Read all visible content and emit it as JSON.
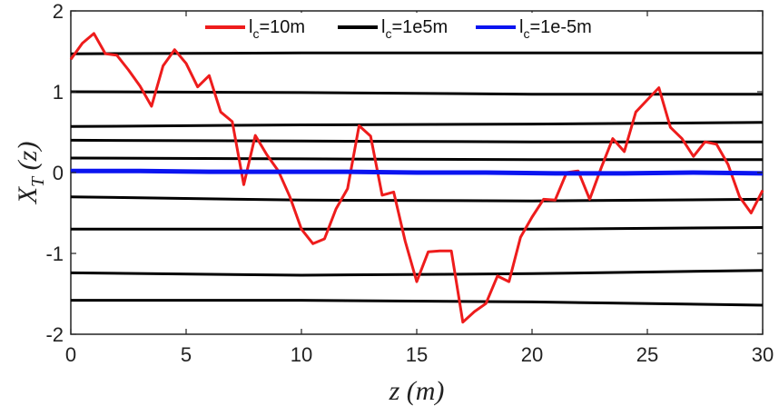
{
  "chart_data": {
    "type": "line",
    "title": "",
    "xlabel": "z (m)",
    "ylabel": "X_T (z)",
    "xlim": [
      0,
      30
    ],
    "ylim": [
      -2,
      2
    ],
    "xticks": [
      "0",
      "5",
      "10",
      "15",
      "20",
      "25",
      "30"
    ],
    "yticks": [
      "2",
      "1",
      "0",
      "-1",
      "-2"
    ],
    "legend_position": "top",
    "colors": {
      "red": "#ee1c1c",
      "black": "#000000",
      "blue": "#0a14f0"
    },
    "series": [
      {
        "name": "lc=10m",
        "legend_main": "l",
        "legend_sub": "c",
        "legend_rest": "=10m",
        "color": "#ee1c1c",
        "points": [
          [
            0,
            1.4
          ],
          [
            0.5,
            1.6
          ],
          [
            1,
            1.72
          ],
          [
            1.5,
            1.47
          ],
          [
            2,
            1.45
          ],
          [
            2.5,
            1.27
          ],
          [
            3,
            1.07
          ],
          [
            3.5,
            0.82
          ],
          [
            4,
            1.32
          ],
          [
            4.5,
            1.52
          ],
          [
            5,
            1.35
          ],
          [
            5.5,
            1.06
          ],
          [
            6,
            1.2
          ],
          [
            6.5,
            0.75
          ],
          [
            7,
            0.63
          ],
          [
            7.5,
            -0.15
          ],
          [
            8,
            0.46
          ],
          [
            8.5,
            0.22
          ],
          [
            9,
            0.02
          ],
          [
            9.5,
            -0.3
          ],
          [
            10,
            -0.7
          ],
          [
            10.5,
            -0.88
          ],
          [
            11,
            -0.82
          ],
          [
            11.5,
            -0.45
          ],
          [
            12,
            -0.2
          ],
          [
            12.5,
            0.58
          ],
          [
            13,
            0.45
          ],
          [
            13.5,
            -0.28
          ],
          [
            14,
            -0.24
          ],
          [
            14.5,
            -0.85
          ],
          [
            15,
            -1.35
          ],
          [
            15.5,
            -0.98
          ],
          [
            16,
            -0.97
          ],
          [
            16.5,
            -0.97
          ],
          [
            17,
            -1.85
          ],
          [
            17.5,
            -1.72
          ],
          [
            18,
            -1.62
          ],
          [
            18.5,
            -1.28
          ],
          [
            19,
            -1.35
          ],
          [
            19.5,
            -0.8
          ],
          [
            20,
            -0.55
          ],
          [
            20.5,
            -0.33
          ],
          [
            21,
            -0.34
          ],
          [
            21.5,
            0.0
          ],
          [
            22,
            0.02
          ],
          [
            22.5,
            -0.33
          ],
          [
            23,
            0.06
          ],
          [
            23.5,
            0.42
          ],
          [
            24,
            0.26
          ],
          [
            24.5,
            0.75
          ],
          [
            25,
            0.9
          ],
          [
            25.5,
            1.05
          ],
          [
            26,
            0.56
          ],
          [
            26.5,
            0.42
          ],
          [
            27,
            0.2
          ],
          [
            27.5,
            0.38
          ],
          [
            28,
            0.35
          ],
          [
            28.5,
            0.1
          ],
          [
            29,
            -0.3
          ],
          [
            29.5,
            -0.5
          ],
          [
            30,
            -0.22
          ]
        ]
      },
      {
        "name": "lc=1e5m",
        "legend_main": "l",
        "legend_sub": "c",
        "legend_rest": "=1e5m",
        "color": "#000000",
        "lines": [
          [
            [
              0,
              1.47
            ],
            [
              10,
              1.48
            ],
            [
              20,
              1.48
            ],
            [
              30,
              1.48
            ]
          ],
          [
            [
              0,
              1.0
            ],
            [
              10,
              0.99
            ],
            [
              20,
              0.97
            ],
            [
              30,
              0.97
            ]
          ],
          [
            [
              0,
              0.57
            ],
            [
              10,
              0.59
            ],
            [
              20,
              0.6
            ],
            [
              30,
              0.62
            ]
          ],
          [
            [
              0,
              0.4
            ],
            [
              10,
              0.39
            ],
            [
              20,
              0.38
            ],
            [
              30,
              0.38
            ]
          ],
          [
            [
              0,
              0.18
            ],
            [
              10,
              0.17
            ],
            [
              20,
              0.16
            ],
            [
              30,
              0.16
            ]
          ],
          [
            [
              0,
              -0.3
            ],
            [
              10,
              -0.34
            ],
            [
              20,
              -0.35
            ],
            [
              30,
              -0.33
            ]
          ],
          [
            [
              0,
              -0.7
            ],
            [
              10,
              -0.7
            ],
            [
              20,
              -0.7
            ],
            [
              30,
              -0.68
            ]
          ],
          [
            [
              0,
              -1.24
            ],
            [
              10,
              -1.27
            ],
            [
              20,
              -1.25
            ],
            [
              30,
              -1.21
            ]
          ],
          [
            [
              0,
              -1.58
            ],
            [
              10,
              -1.58
            ],
            [
              20,
              -1.6
            ],
            [
              30,
              -1.64
            ]
          ]
        ]
      },
      {
        "name": "lc=1e-5m",
        "legend_main": "l",
        "legend_sub": "c",
        "legend_rest": "=1e-5m",
        "color": "#0a14f0",
        "points": [
          [
            0,
            0.02
          ],
          [
            3,
            0.02
          ],
          [
            6,
            0.01
          ],
          [
            9,
            0.01
          ],
          [
            12,
            0.01
          ],
          [
            15,
            0.0
          ],
          [
            18,
            0.0
          ],
          [
            21,
            -0.01
          ],
          [
            24,
            -0.01
          ],
          [
            27,
            0.0
          ],
          [
            30,
            -0.01
          ]
        ]
      }
    ]
  }
}
